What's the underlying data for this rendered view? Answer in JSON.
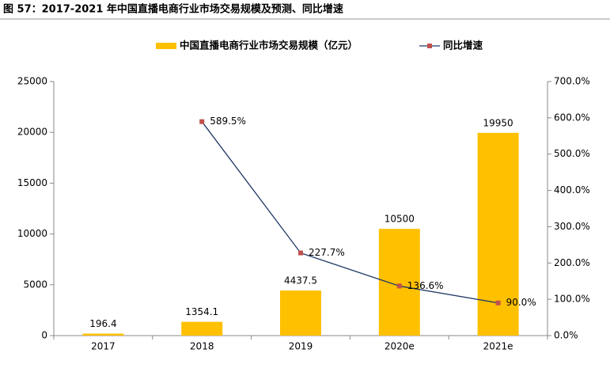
{
  "chart_data": {
    "type": "bar",
    "title": "图 57：2017-2021 年中国直播电商行业市场交易规模及预测、同比增速",
    "categories": [
      "2017",
      "2018",
      "2019",
      "2020e",
      "2021e"
    ],
    "series": [
      {
        "name": "中国直播电商行业市场交易规模（亿元）",
        "type": "bar",
        "color": "#ffc000",
        "values": [
          196.4,
          1354.1,
          4437.5,
          10500,
          19950
        ]
      },
      {
        "name": "同比增速",
        "type": "line",
        "axis": "y2",
        "color": "#1f3864",
        "marker_color": "#c0504d",
        "values": [
          null,
          589.5,
          227.7,
          136.6,
          90.0
        ],
        "value_labels": [
          null,
          "589.5%",
          "227.7%",
          "136.6%",
          "90.0%"
        ]
      }
    ],
    "ylim": [
      0,
      25000
    ],
    "yticks": [
      0,
      5000,
      10000,
      15000,
      20000,
      25000
    ],
    "y2lim": [
      0,
      700
    ],
    "y2ticks": [
      {
        "value": 0,
        "label": "0.0%"
      },
      {
        "value": 100,
        "label": "100.0%"
      },
      {
        "value": 200,
        "label": "200.0%"
      },
      {
        "value": 300,
        "label": "300.0%"
      },
      {
        "value": 400,
        "label": "400.0%"
      },
      {
        "value": 500,
        "label": "500.0%"
      },
      {
        "value": 600,
        "label": "600.0%"
      },
      {
        "value": 700,
        "label": "700.0%"
      }
    ]
  }
}
